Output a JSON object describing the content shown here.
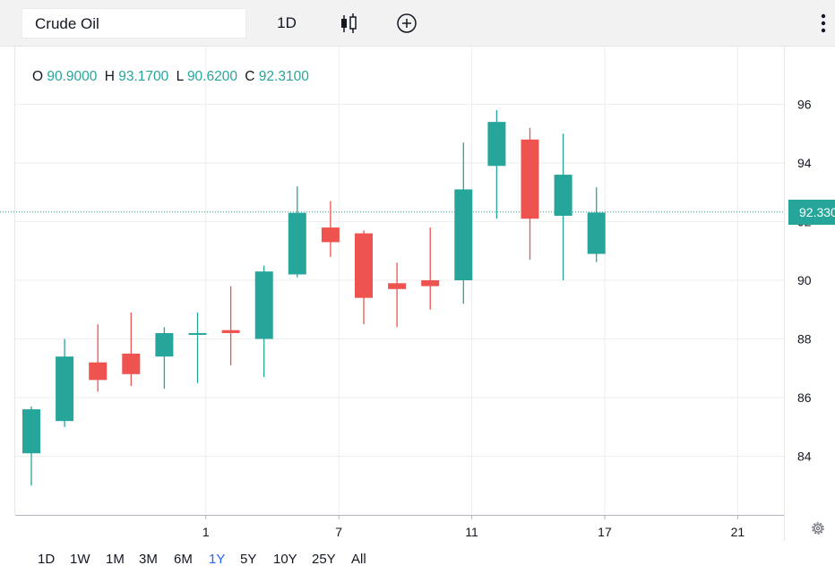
{
  "toolbar": {
    "symbol": "Crude Oil",
    "interval": "1D",
    "icons": [
      "candlestick-chart-type-icon",
      "compare-add-icon",
      "more-vertical-icon"
    ]
  },
  "legend": {
    "o_label": "O",
    "o_value": "90.9000",
    "h_label": "H",
    "h_value": "93.1700",
    "l_label": "L",
    "l_value": "90.6200",
    "c_label": "C",
    "c_value": "92.3100"
  },
  "last_price_label": "92.330",
  "ranges": [
    {
      "label": "1D",
      "active": false
    },
    {
      "label": "1W",
      "active": false
    },
    {
      "label": "1M",
      "active": false
    },
    {
      "label": "3M",
      "active": false
    },
    {
      "label": "6M",
      "active": false
    },
    {
      "label": "1Y",
      "active": true
    },
    {
      "label": "5Y",
      "active": false
    },
    {
      "label": "10Y",
      "active": false
    },
    {
      "label": "25Y",
      "active": false
    },
    {
      "label": "All",
      "active": false
    }
  ],
  "colors": {
    "up": "#26a69a",
    "down": "#ef5350",
    "grid": "#eeeeee",
    "text": "#131722",
    "active_range": "#2962ff"
  },
  "chart_data": {
    "type": "candlestick",
    "y_ticks": [
      84,
      86,
      88,
      90,
      92,
      94,
      96
    ],
    "ylim": [
      82.3,
      97.8
    ],
    "x_ticks": [
      {
        "label": "1",
        "index": 5.25
      },
      {
        "label": "7",
        "index": 9.25
      },
      {
        "label": "11",
        "index": 13.25
      },
      {
        "label": "17",
        "index": 17.25
      },
      {
        "label": "21",
        "index": 21.25
      }
    ],
    "last_price": 92.33,
    "grid": true,
    "candles": [
      {
        "o": 84.1,
        "h": 85.7,
        "l": 83.0,
        "c": 85.6
      },
      {
        "o": 85.2,
        "h": 88.0,
        "l": 85.0,
        "c": 87.4
      },
      {
        "o": 87.2,
        "h": 88.5,
        "l": 86.2,
        "c": 86.6
      },
      {
        "o": 87.5,
        "h": 88.9,
        "l": 86.4,
        "c": 86.8
      },
      {
        "o": 87.4,
        "h": 88.4,
        "l": 86.3,
        "c": 88.2
      },
      {
        "o": 88.15,
        "h": 88.9,
        "l": 86.5,
        "c": 88.2
      },
      {
        "o": 88.3,
        "h": 89.8,
        "l": 87.1,
        "c": 88.2
      },
      {
        "o": 88.0,
        "h": 90.5,
        "l": 86.7,
        "c": 90.3
      },
      {
        "o": 90.2,
        "h": 93.2,
        "l": 90.1,
        "c": 92.3
      },
      {
        "o": 91.8,
        "h": 92.7,
        "l": 90.8,
        "c": 91.3
      },
      {
        "o": 91.6,
        "h": 91.7,
        "l": 88.5,
        "c": 89.4
      },
      {
        "o": 89.9,
        "h": 90.6,
        "l": 88.4,
        "c": 89.7
      },
      {
        "o": 90.0,
        "h": 91.8,
        "l": 89.0,
        "c": 89.8
      },
      {
        "o": 90.0,
        "h": 94.7,
        "l": 89.2,
        "c": 93.1
      },
      {
        "o": 93.9,
        "h": 95.8,
        "l": 92.1,
        "c": 95.4
      },
      {
        "o": 94.8,
        "h": 95.2,
        "l": 90.7,
        "c": 92.1
      },
      {
        "o": 92.2,
        "h": 95.0,
        "l": 90.0,
        "c": 93.6
      },
      {
        "o": 90.9,
        "h": 93.17,
        "l": 90.62,
        "c": 92.31
      }
    ]
  }
}
